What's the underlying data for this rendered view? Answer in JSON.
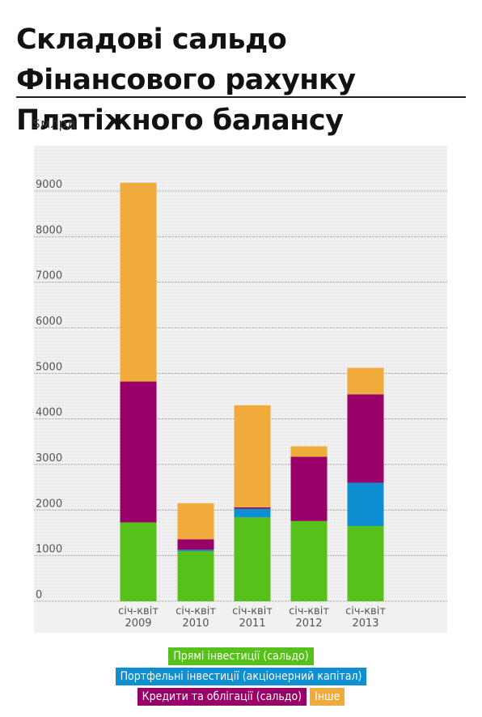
{
  "title": "Складові сальдо Фінансового рахунку Платіжного балансу",
  "unit_label": "$млрд",
  "colors": {
    "fdi": "#56c11a",
    "portfolio": "#0e8fd2",
    "loans": "#990068",
    "other": "#f0ab3a",
    "plot_bg": "#f1f1f1",
    "plot_dots": "#cfcfcf"
  },
  "chart_data": {
    "type": "bar",
    "stacked": true,
    "title": "Складові сальдо Фінансового рахунку Платіжного балансу",
    "ylabel": "$млрд",
    "xlabel": "",
    "ylim": [
      0,
      10000
    ],
    "yticks": [
      0,
      1000,
      2000,
      3000,
      4000,
      5000,
      6000,
      7000,
      8000,
      9000
    ],
    "grid": true,
    "legend_position": "bottom",
    "categories": [
      [
        "січ-квіт",
        "2009"
      ],
      [
        "січ-квіт",
        "2010"
      ],
      [
        "січ-квіт",
        "2011"
      ],
      [
        "січ-квіт",
        "2012"
      ],
      [
        "січ-квіт",
        "2013"
      ]
    ],
    "series": [
      {
        "name": "Прямі інвестиції (сальдо)",
        "color": "#56c11a",
        "values": [
          1730,
          1100,
          1840,
          1760,
          1650
        ]
      },
      {
        "name": "Портфельні інвестиції (акціонерний капітал)",
        "color": "#0e8fd2",
        "values": [
          0,
          30,
          190,
          0,
          950
        ]
      },
      {
        "name": "Кредити та облігації (сальдо)",
        "color": "#990068",
        "values": [
          3090,
          230,
          30,
          1410,
          1940
        ]
      },
      {
        "name": "Інше",
        "color": "#f0ab3a",
        "values": [
          4360,
          790,
          2240,
          230,
          580
        ]
      }
    ]
  }
}
